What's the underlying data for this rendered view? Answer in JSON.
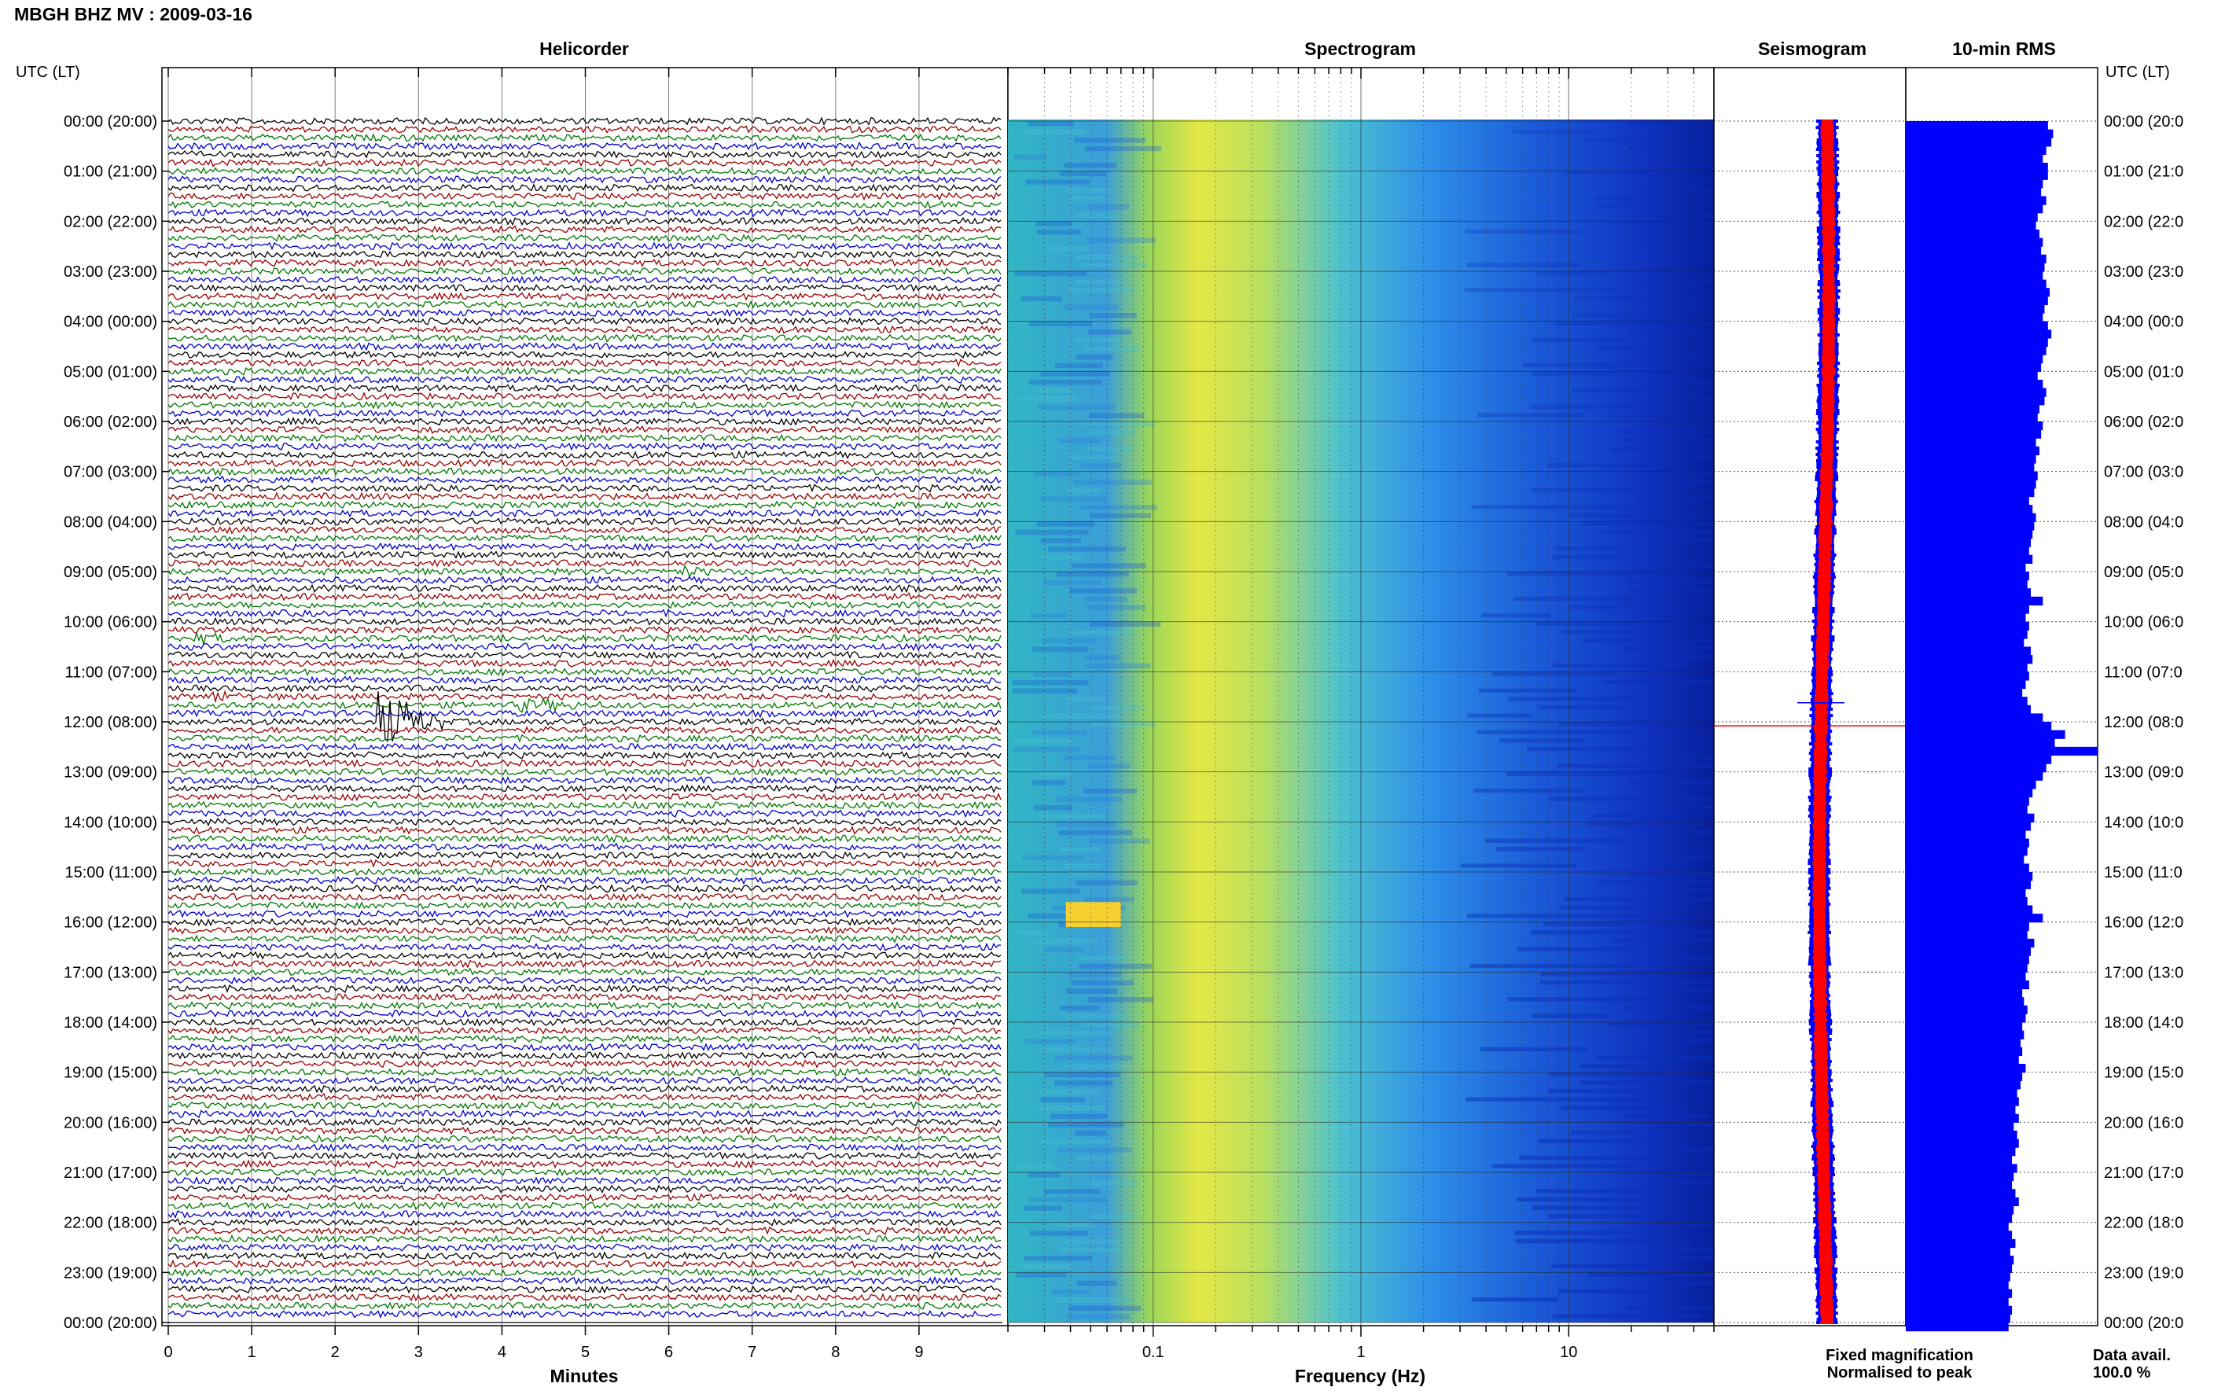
{
  "title": "MBGH BHZ MV : 2009-03-16",
  "panel_titles": {
    "helicorder": "Helicorder",
    "spectrogram": "Spectrogram",
    "seismogram": "Seismogram",
    "rms": "10-min RMS"
  },
  "time_axis_label": "UTC (LT)",
  "hour_labels": [
    "00:00 (20:00)",
    "01:00 (21:00)",
    "02:00 (22:00)",
    "03:00 (23:00)",
    "04:00 (00:00)",
    "05:00 (01:00)",
    "06:00 (02:00)",
    "07:00 (03:00)",
    "08:00 (04:00)",
    "09:00 (05:00)",
    "10:00 (06:00)",
    "11:00 (07:00)",
    "12:00 (08:00)",
    "13:00 (09:00)",
    "14:00 (10:00)",
    "15:00 (11:00)",
    "16:00 (12:00)",
    "17:00 (13:00)",
    "18:00 (14:00)",
    "19:00 (15:00)",
    "20:00 (16:00)",
    "21:00 (17:00)",
    "22:00 (18:00)",
    "23:00 (19:00)",
    "00:00 (20:00)"
  ],
  "right_hour_labels": [
    "00:00 (20:0",
    "01:00 (21:0",
    "02:00 (22:0",
    "03:00 (23:0",
    "04:00 (00:0",
    "05:00 (01:0",
    "06:00 (02:0",
    "07:00 (03:0",
    "08:00 (04:0",
    "09:00 (05:0",
    "10:00 (06:0",
    "11:00 (07:0",
    "12:00 (08:0",
    "13:00 (09:0",
    "14:00 (10:0",
    "15:00 (11:0",
    "16:00 (12:0",
    "17:00 (13:0",
    "18:00 (14:0",
    "19:00 (15:0",
    "20:00 (16:0",
    "21:00 (17:0",
    "22:00 (18:0",
    "23:00 (19:0",
    "00:00 (20:0"
  ],
  "legend": {
    "fixed": "Fixed magnification",
    "normalised": "Normalised to peak",
    "fixed_color": "#0000ff",
    "normalised_color": "#ff0000",
    "data_avail_label": "Data avail.",
    "data_avail_value": "100.0 %"
  },
  "chart_data": [
    {
      "type": "line",
      "panel": "helicorder",
      "xlabel": "Minutes",
      "xticks": [
        "0",
        "1",
        "2",
        "3",
        "4",
        "5",
        "6",
        "7",
        "8",
        "9"
      ],
      "xlim": [
        0,
        10
      ],
      "trace_colors": [
        "#000000",
        "#990000",
        "#007700",
        "#0000cc"
      ],
      "lines_per_hour": 6,
      "events": [
        {
          "hour": 8.98,
          "minute": 6.1,
          "amplitude": 1.5,
          "duration_min": 0.4
        },
        {
          "hour": 10.3,
          "minute": 0.3,
          "amplitude": 1.2,
          "duration_min": 0.5
        },
        {
          "hour": 11.47,
          "minute": 0.5,
          "amplitude": 1.6,
          "duration_min": 0.4
        },
        {
          "hour": 11.62,
          "minute": 4.2,
          "amplitude": 1.4,
          "duration_min": 1.0
        },
        {
          "hour": 11.95,
          "minute": 2.5,
          "amplitude": 9.0,
          "duration_min": 0.8
        }
      ]
    },
    {
      "type": "heatmap",
      "panel": "spectrogram",
      "xlabel": "Frequency (Hz)",
      "xscale": "log",
      "xlim": [
        0.02,
        50
      ],
      "xticks": [
        "0.1",
        "1",
        "10"
      ],
      "colormap": "jet",
      "peak_band_hz": [
        0.15,
        0.5
      ]
    },
    {
      "type": "line",
      "panel": "seismogram",
      "series": [
        {
          "name": "Fixed magnification",
          "color": "#0000ff"
        },
        {
          "name": "Normalised to peak",
          "color": "#ff0000"
        }
      ],
      "spike_hour": 12.08
    },
    {
      "type": "bar",
      "panel": "10-min RMS",
      "orientation": "horizontal",
      "bins_per_hour": 6,
      "values": [
        0.83,
        0.86,
        0.85,
        0.82,
        0.8,
        0.83,
        0.83,
        0.8,
        0.79,
        0.82,
        0.8,
        0.77,
        0.76,
        0.78,
        0.8,
        0.79,
        0.82,
        0.81,
        0.8,
        0.82,
        0.84,
        0.83,
        0.81,
        0.8,
        0.83,
        0.85,
        0.83,
        0.82,
        0.8,
        0.79,
        0.77,
        0.8,
        0.82,
        0.81,
        0.78,
        0.77,
        0.8,
        0.79,
        0.76,
        0.78,
        0.76,
        0.75,
        0.77,
        0.76,
        0.75,
        0.72,
        0.74,
        0.76,
        0.75,
        0.74,
        0.73,
        0.72,
        0.74,
        0.7,
        0.72,
        0.71,
        0.73,
        0.8,
        0.72,
        0.7,
        0.72,
        0.71,
        0.69,
        0.73,
        0.74,
        0.71,
        0.72,
        0.7,
        0.68,
        0.71,
        0.73,
        0.8,
        0.85,
        0.93,
        0.87,
        1.12,
        0.85,
        0.82,
        0.8,
        0.76,
        0.74,
        0.72,
        0.71,
        0.75,
        0.73,
        0.7,
        0.72,
        0.71,
        0.69,
        0.72,
        0.74,
        0.73,
        0.7,
        0.71,
        0.74,
        0.8,
        0.72,
        0.71,
        0.75,
        0.73,
        0.72,
        0.71,
        0.7,
        0.72,
        0.68,
        0.69,
        0.71,
        0.7,
        0.68,
        0.69,
        0.67,
        0.68,
        0.66,
        0.7,
        0.68,
        0.67,
        0.65,
        0.66,
        0.64,
        0.66,
        0.63,
        0.65,
        0.66,
        0.64,
        0.62,
        0.65,
        0.63,
        0.62,
        0.64,
        0.66,
        0.63,
        0.62,
        0.6,
        0.62,
        0.64,
        0.61,
        0.63,
        0.62,
        0.61,
        0.6,
        0.62,
        0.6,
        0.62,
        0.61,
        0.6
      ]
    }
  ]
}
